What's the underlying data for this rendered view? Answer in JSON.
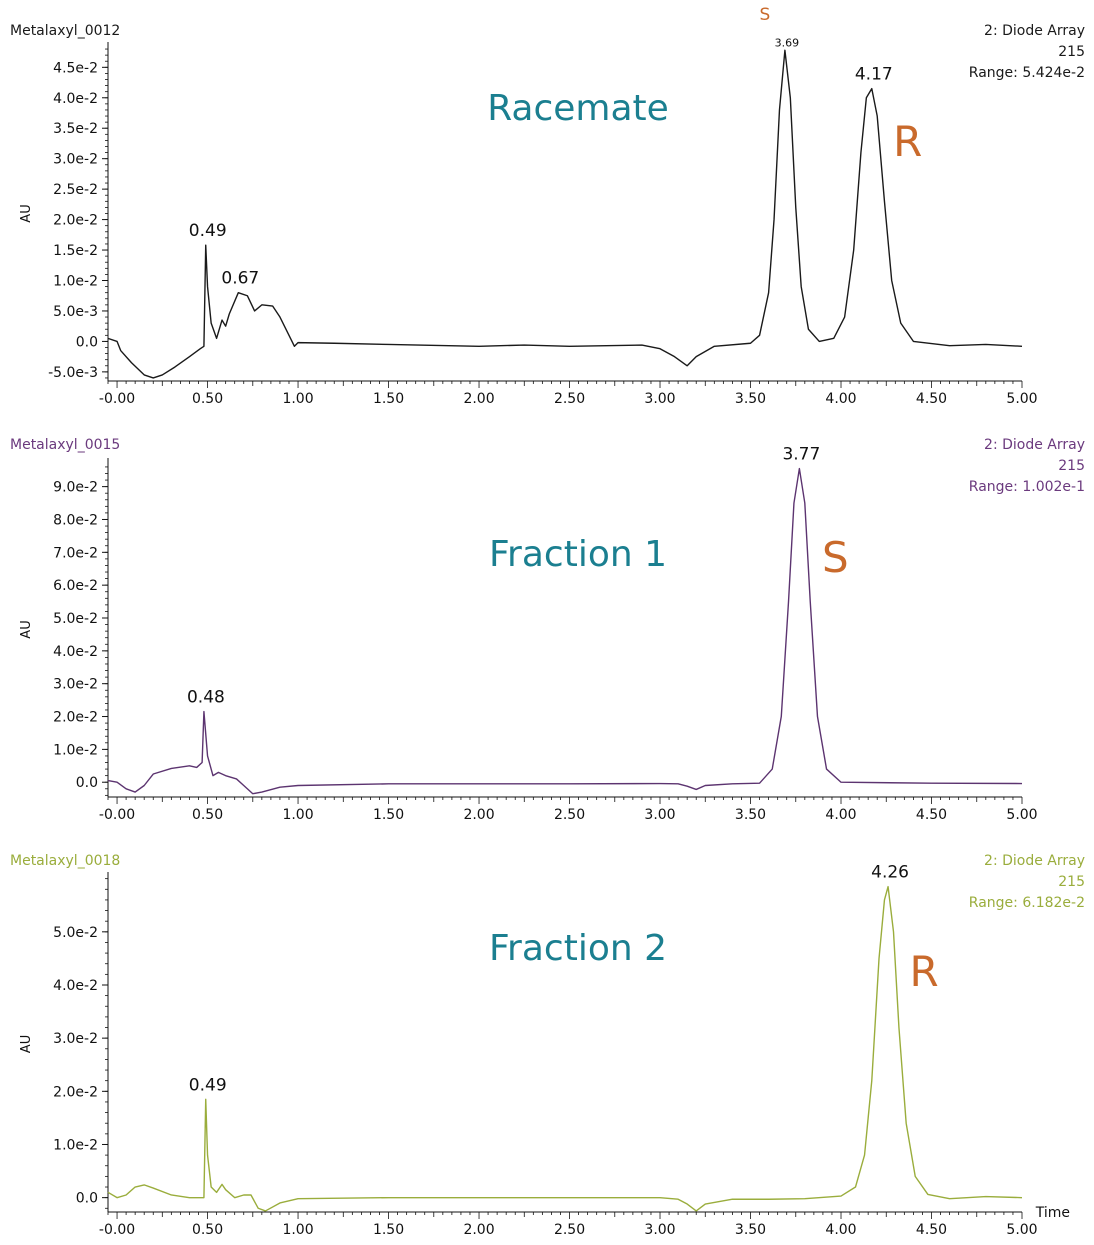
{
  "chart_data": [
    {
      "type": "line",
      "sample": "Metalaxyl_0012",
      "detector": "2: Diode Array",
      "channel": "215",
      "range": "Range: 5.424e-2",
      "annotation": "Racemate",
      "ylabel": "AU",
      "xlim": [
        -0.05,
        5.0
      ],
      "ylim": [
        -0.0065,
        0.0485
      ],
      "x_ticks": [
        "-0.00",
        "0.50",
        "1.00",
        "1.50",
        "2.00",
        "2.50",
        "3.00",
        "3.50",
        "4.00",
        "4.50",
        "5.00"
      ],
      "y_ticks": [
        {
          "value": 0.045,
          "label": "4.5e-2"
        },
        {
          "value": 0.04,
          "label": "4.0e-2"
        },
        {
          "value": 0.035,
          "label": "3.5e-2"
        },
        {
          "value": 0.03,
          "label": "3.0e-2"
        },
        {
          "value": 0.025,
          "label": "2.5e-2"
        },
        {
          "value": 0.02,
          "label": "2.0e-2"
        },
        {
          "value": 0.015,
          "label": "1.5e-2"
        },
        {
          "value": 0.01,
          "label": "1.0e-2"
        },
        {
          "value": 0.005,
          "label": "5.0e-3"
        },
        {
          "value": 0.0,
          "label": "0.0"
        },
        {
          "value": -0.005,
          "label": "-5.0e-3"
        }
      ],
      "line_color": "#1a1a1a",
      "header_color": "#1a1a1a",
      "series": [
        {
          "points": [
            [
              -0.05,
              0.0005
            ],
            [
              0.0,
              0.0
            ],
            [
              0.02,
              -0.0015
            ],
            [
              0.08,
              -0.0035
            ],
            [
              0.15,
              -0.0055
            ],
            [
              0.2,
              -0.006
            ],
            [
              0.25,
              -0.0055
            ],
            [
              0.32,
              -0.0042
            ],
            [
              0.4,
              -0.0025
            ],
            [
              0.46,
              -0.0012
            ],
            [
              0.48,
              -0.0008
            ],
            [
              0.49,
              0.0158
            ],
            [
              0.5,
              0.009
            ],
            [
              0.52,
              0.003
            ],
            [
              0.55,
              0.0005
            ],
            [
              0.58,
              0.0035
            ],
            [
              0.6,
              0.0025
            ],
            [
              0.62,
              0.0045
            ],
            [
              0.67,
              0.008
            ],
            [
              0.72,
              0.0075
            ],
            [
              0.76,
              0.005
            ],
            [
              0.8,
              0.006
            ],
            [
              0.86,
              0.0058
            ],
            [
              0.9,
              0.004
            ],
            [
              0.95,
              0.001
            ],
            [
              0.98,
              -0.0008
            ],
            [
              1.0,
              -0.0002
            ],
            [
              1.2,
              -0.0003
            ],
            [
              1.5,
              -0.0005
            ],
            [
              2.0,
              -0.0008
            ],
            [
              2.25,
              -0.0006
            ],
            [
              2.5,
              -0.0008
            ],
            [
              2.9,
              -0.0006
            ],
            [
              3.0,
              -0.0012
            ],
            [
              3.08,
              -0.0025
            ],
            [
              3.15,
              -0.004
            ],
            [
              3.2,
              -0.0025
            ],
            [
              3.3,
              -0.0008
            ],
            [
              3.5,
              -0.0003
            ],
            [
              3.55,
              0.001
            ],
            [
              3.6,
              0.008
            ],
            [
              3.63,
              0.02
            ],
            [
              3.66,
              0.038
            ],
            [
              3.69,
              0.0478
            ],
            [
              3.72,
              0.04
            ],
            [
              3.75,
              0.022
            ],
            [
              3.78,
              0.009
            ],
            [
              3.82,
              0.002
            ],
            [
              3.88,
              0.0
            ],
            [
              3.96,
              0.0005
            ],
            [
              4.02,
              0.004
            ],
            [
              4.07,
              0.015
            ],
            [
              4.11,
              0.031
            ],
            [
              4.14,
              0.04
            ],
            [
              4.17,
              0.0415
            ],
            [
              4.2,
              0.037
            ],
            [
              4.24,
              0.023
            ],
            [
              4.28,
              0.01
            ],
            [
              4.33,
              0.003
            ],
            [
              4.4,
              0.0
            ],
            [
              4.6,
              -0.0007
            ],
            [
              4.8,
              -0.0005
            ],
            [
              5.0,
              -0.0008
            ]
          ]
        }
      ],
      "peaks": [
        {
          "x": 0.49,
          "y": 0.0158,
          "label": "0.49"
        },
        {
          "x": 0.67,
          "y": 0.008,
          "label": "0.67"
        },
        {
          "x": 3.69,
          "y": 0.0478,
          "label": "3.69",
          "small": true
        },
        {
          "x": 4.17,
          "y": 0.0415,
          "label": "4.17"
        }
      ],
      "enantiomer_labels": [
        {
          "text": "S",
          "near_x": 3.69,
          "size": "small"
        },
        {
          "text": "R",
          "near_x": 4.17,
          "size": "large"
        }
      ]
    },
    {
      "type": "line",
      "sample": "Metalaxyl_0015",
      "detector": "2: Diode Array",
      "channel": "215",
      "range": "Range: 1.002e-1",
      "annotation": "Fraction 1",
      "ylabel": "AU",
      "xlim": [
        -0.05,
        5.0
      ],
      "ylim": [
        -0.0045,
        0.0975
      ],
      "x_ticks": [
        "-0.00",
        "0.50",
        "1.00",
        "1.50",
        "2.00",
        "2.50",
        "3.00",
        "3.50",
        "4.00",
        "4.50",
        "5.00"
      ],
      "y_ticks": [
        {
          "value": 0.09,
          "label": "9.0e-2"
        },
        {
          "value": 0.08,
          "label": "8.0e-2"
        },
        {
          "value": 0.07,
          "label": "7.0e-2"
        },
        {
          "value": 0.06,
          "label": "6.0e-2"
        },
        {
          "value": 0.05,
          "label": "5.0e-2"
        },
        {
          "value": 0.04,
          "label": "4.0e-2"
        },
        {
          "value": 0.03,
          "label": "3.0e-2"
        },
        {
          "value": 0.02,
          "label": "2.0e-2"
        },
        {
          "value": 0.01,
          "label": "1.0e-2"
        },
        {
          "value": 0.0,
          "label": "0.0"
        }
      ],
      "line_color": "#5c3470",
      "header_color": "#6b3a7e",
      "series": [
        {
          "points": [
            [
              -0.05,
              0.0005
            ],
            [
              0.0,
              0.0
            ],
            [
              0.05,
              -0.002
            ],
            [
              0.1,
              -0.003
            ],
            [
              0.15,
              -0.001
            ],
            [
              0.2,
              0.0025
            ],
            [
              0.3,
              0.0042
            ],
            [
              0.4,
              0.005
            ],
            [
              0.44,
              0.0045
            ],
            [
              0.47,
              0.006
            ],
            [
              0.48,
              0.0215
            ],
            [
              0.5,
              0.008
            ],
            [
              0.53,
              0.002
            ],
            [
              0.56,
              0.003
            ],
            [
              0.6,
              0.002
            ],
            [
              0.66,
              0.001
            ],
            [
              0.7,
              -0.001
            ],
            [
              0.75,
              -0.0035
            ],
            [
              0.8,
              -0.003
            ],
            [
              0.9,
              -0.0015
            ],
            [
              1.0,
              -0.001
            ],
            [
              1.5,
              -0.0005
            ],
            [
              2.0,
              -0.0005
            ],
            [
              2.5,
              -0.0005
            ],
            [
              3.0,
              -0.0004
            ],
            [
              3.1,
              -0.0005
            ],
            [
              3.15,
              -0.0012
            ],
            [
              3.2,
              -0.0022
            ],
            [
              3.25,
              -0.001
            ],
            [
              3.4,
              -0.0005
            ],
            [
              3.55,
              -0.0003
            ],
            [
              3.62,
              0.004
            ],
            [
              3.67,
              0.02
            ],
            [
              3.71,
              0.055
            ],
            [
              3.74,
              0.085
            ],
            [
              3.77,
              0.0955
            ],
            [
              3.8,
              0.085
            ],
            [
              3.83,
              0.055
            ],
            [
              3.87,
              0.02
            ],
            [
              3.92,
              0.004
            ],
            [
              4.0,
              0.0
            ],
            [
              4.5,
              -0.0003
            ],
            [
              5.0,
              -0.0004
            ]
          ]
        }
      ],
      "peaks": [
        {
          "x": 0.48,
          "y": 0.0215,
          "label": "0.48"
        },
        {
          "x": 3.77,
          "y": 0.0955,
          "label": "3.77"
        }
      ],
      "enantiomer_labels": [
        {
          "text": "S",
          "near_x": 3.77,
          "size": "large"
        }
      ]
    },
    {
      "type": "line",
      "sample": "Metalaxyl_0018",
      "detector": "2: Diode Array",
      "channel": "215",
      "range": "Range: 6.182e-2",
      "annotation": "Fraction 2",
      "ylabel": "AU",
      "xlabel": "Time",
      "xlim": [
        -0.05,
        5.0
      ],
      "ylim": [
        -0.0027,
        0.0605
      ],
      "x_ticks": [
        "-0.00",
        "0.50",
        "1.00",
        "1.50",
        "2.00",
        "2.50",
        "3.00",
        "3.50",
        "4.00",
        "4.50",
        "5.00"
      ],
      "y_ticks": [
        {
          "value": 0.05,
          "label": "5.0e-2"
        },
        {
          "value": 0.04,
          "label": "4.0e-2"
        },
        {
          "value": 0.03,
          "label": "3.0e-2"
        },
        {
          "value": 0.02,
          "label": "2.0e-2"
        },
        {
          "value": 0.01,
          "label": "1.0e-2"
        },
        {
          "value": 0.0,
          "label": "0.0"
        }
      ],
      "line_color": "#9aad3c",
      "header_color": "#9aad3c",
      "series": [
        {
          "points": [
            [
              -0.05,
              0.001
            ],
            [
              0.0,
              0.0
            ],
            [
              0.05,
              0.0005
            ],
            [
              0.1,
              0.002
            ],
            [
              0.15,
              0.0024
            ],
            [
              0.2,
              0.0018
            ],
            [
              0.3,
              0.0005
            ],
            [
              0.4,
              0.0
            ],
            [
              0.46,
              0.0
            ],
            [
              0.48,
              0.0
            ],
            [
              0.49,
              0.0185
            ],
            [
              0.5,
              0.008
            ],
            [
              0.52,
              0.002
            ],
            [
              0.55,
              0.001
            ],
            [
              0.58,
              0.0025
            ],
            [
              0.6,
              0.0015
            ],
            [
              0.65,
              0.0
            ],
            [
              0.7,
              0.0005
            ],
            [
              0.74,
              0.0005
            ],
            [
              0.78,
              -0.002
            ],
            [
              0.82,
              -0.0025
            ],
            [
              0.9,
              -0.001
            ],
            [
              1.0,
              -0.0002
            ],
            [
              1.5,
              0.0
            ],
            [
              2.0,
              0.0
            ],
            [
              2.5,
              0.0
            ],
            [
              3.0,
              0.0
            ],
            [
              3.1,
              -0.0003
            ],
            [
              3.15,
              -0.0012
            ],
            [
              3.2,
              -0.0025
            ],
            [
              3.25,
              -0.0012
            ],
            [
              3.4,
              -0.0003
            ],
            [
              3.6,
              -0.0003
            ],
            [
              3.8,
              -0.0002
            ],
            [
              4.0,
              0.0003
            ],
            [
              4.08,
              0.002
            ],
            [
              4.13,
              0.008
            ],
            [
              4.17,
              0.022
            ],
            [
              4.21,
              0.045
            ],
            [
              4.24,
              0.056
            ],
            [
              4.26,
              0.0585
            ],
            [
              4.29,
              0.05
            ],
            [
              4.32,
              0.032
            ],
            [
              4.36,
              0.014
            ],
            [
              4.41,
              0.004
            ],
            [
              4.48,
              0.0006
            ],
            [
              4.6,
              -0.0002
            ],
            [
              4.8,
              0.0002
            ],
            [
              5.0,
              0.0
            ]
          ]
        }
      ],
      "peaks": [
        {
          "x": 0.49,
          "y": 0.0185,
          "label": "0.49"
        },
        {
          "x": 4.26,
          "y": 0.0585,
          "label": "4.26"
        }
      ],
      "enantiomer_labels": [
        {
          "text": "R",
          "near_x": 4.26,
          "size": "large"
        }
      ]
    }
  ],
  "colors": {
    "annotation": "#1b7f90",
    "enantiomer": "#c96a2c",
    "axis": "#111111"
  }
}
